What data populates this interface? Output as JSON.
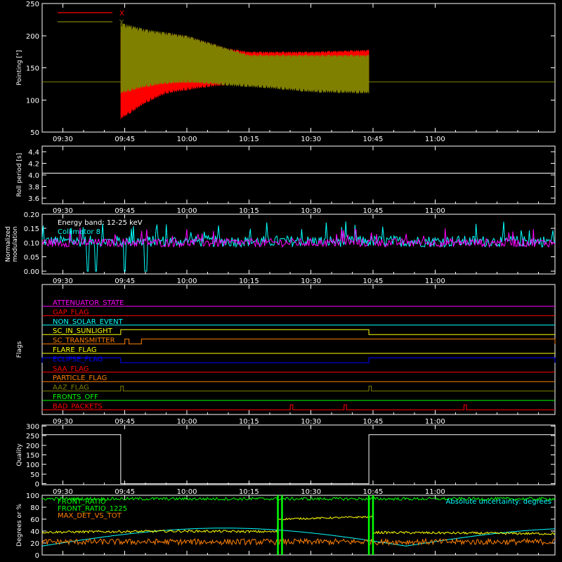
{
  "colors": {
    "background": "#000000",
    "axes": "#ffffff",
    "x_red": "#ff0000",
    "y_olive": "#808000",
    "white": "#ffffff",
    "cyan": "#00ffff",
    "magenta": "#ff00ff",
    "red": "#ff0000",
    "green": "#00ff00",
    "yellow": "#ffff00",
    "orange": "#ff8000",
    "blue": "#0000ff"
  },
  "time_ticks": [
    "09:30",
    "09:45",
    "10:00",
    "10:15",
    "10:30",
    "10:45",
    "11:00"
  ],
  "chart_data": [
    {
      "id": "pointing",
      "type": "area",
      "ylabel": "Pointing [\"]",
      "ylim": [
        50,
        250
      ],
      "yticks": [
        "50",
        "100",
        "150",
        "200",
        "250"
      ],
      "ytick_values": [
        50,
        100,
        150,
        200,
        250
      ],
      "legend": [
        {
          "name": "X",
          "color": "#ff0000"
        },
        {
          "name": "Y",
          "color": "#808000"
        }
      ],
      "x_range": [
        "09:25",
        "11:29"
      ],
      "data_start": "09:44",
      "data_end": "10:44",
      "reference_line": 128,
      "series": [
        {
          "name": "X",
          "color": "#ff0000",
          "x": [
            "09:44",
            "09:50",
            "09:55",
            "10:00",
            "10:05",
            "10:10",
            "10:15",
            "10:20",
            "10:30",
            "10:44"
          ],
          "upper": [
            205,
            205,
            205,
            200,
            190,
            180,
            175,
            175,
            175,
            178
          ],
          "lower": [
            70,
            95,
            110,
            115,
            120,
            123,
            125,
            125,
            125,
            126
          ]
        },
        {
          "name": "Y",
          "color": "#808000",
          "x": [
            "09:44",
            "09:50",
            "09:55",
            "10:00",
            "10:05",
            "10:10",
            "10:15",
            "10:20",
            "10:30",
            "10:44"
          ],
          "upper": [
            220,
            210,
            205,
            200,
            190,
            180,
            170,
            170,
            170,
            170
          ],
          "lower": [
            110,
            120,
            125,
            127,
            125,
            122,
            120,
            118,
            112,
            110
          ]
        }
      ]
    },
    {
      "id": "roll",
      "type": "line",
      "ylabel": "Roll period [s]",
      "ylim": [
        3.5,
        4.5
      ],
      "yticks": [
        "3.6",
        "3.8",
        "4.0",
        "4.2",
        "4.4"
      ],
      "ytick_values": [
        3.6,
        3.8,
        4.0,
        4.2,
        4.4
      ],
      "series": [
        {
          "name": "roll",
          "color": "#ffffff",
          "x": [
            "09:25",
            "11:29"
          ],
          "y": [
            4.03,
            4.03
          ]
        }
      ]
    },
    {
      "id": "modulation",
      "type": "line",
      "ylabel": "Normalized modulation",
      "ylim": [
        -0.01,
        0.2
      ],
      "yticks": [
        "0.00",
        "0.05",
        "0.10",
        "0.15",
        "0.20"
      ],
      "ytick_values": [
        0.0,
        0.05,
        0.1,
        0.15,
        0.2
      ],
      "annotation": "Energy band: 12-25 keV",
      "series": [
        {
          "name": "Collimator 8",
          "color": "#00ffff",
          "mean": 0.105,
          "spread": 0.02,
          "dropouts": [
            "09:36",
            "09:38",
            "09:45",
            "09:50"
          ]
        },
        {
          "name": "",
          "color": "#ff00ff",
          "mean": 0.1,
          "spread": 0.015
        }
      ]
    },
    {
      "id": "flags",
      "type": "line",
      "ylabel": "Flags",
      "flags": [
        {
          "name": "ATTENUATOR_STATE",
          "color": "#ff00ff"
        },
        {
          "name": "GAP_FLAG",
          "color": "#ff0000"
        },
        {
          "name": "NON_SOLAR_EVENT",
          "color": "#00ffff"
        },
        {
          "name": "SC_IN_SUNLIGHT",
          "color": "#ffff00",
          "high": [
            [
              "09:44",
              "10:44"
            ]
          ]
        },
        {
          "name": "SC_TRANSMITTER",
          "color": "#ff8000",
          "high": [
            [
              "09:45",
              "09:46"
            ],
            [
              "09:49",
              "11:29"
            ]
          ]
        },
        {
          "name": "FLARE_FLAG",
          "color": "#ffff00"
        },
        {
          "name": "ECLIPSE_FLAG",
          "color": "#0000ff",
          "high": [
            [
              "09:25",
              "09:44"
            ],
            [
              "10:44",
              "11:29"
            ]
          ]
        },
        {
          "name": "SAA_FLAG",
          "color": "#ff0000"
        },
        {
          "name": "PARTICLE_FLAG",
          "color": "#ff8000"
        },
        {
          "name": "AAZ_FLAG",
          "color": "#808000",
          "pulses": [
            "09:44",
            "10:44"
          ]
        },
        {
          "name": "FRONTS_OFF",
          "color": "#00ff00"
        },
        {
          "name": "BAD_PACKETS",
          "color": "#ff0000",
          "pulses": [
            "10:25",
            "10:38",
            "11:07"
          ]
        }
      ]
    },
    {
      "id": "quality",
      "type": "line",
      "ylabel": "Quality",
      "ylim": [
        -5,
        305
      ],
      "yticks": [
        "0",
        "50",
        "100",
        "150",
        "200",
        "250",
        "300"
      ],
      "ytick_values": [
        0,
        50,
        100,
        150,
        200,
        250,
        300
      ],
      "series": [
        {
          "name": "quality",
          "color": "#ffffff",
          "x": [
            "09:25",
            "09:44",
            "09:44",
            "10:44",
            "10:44",
            "11:29"
          ],
          "y": [
            255,
            255,
            0,
            0,
            255,
            255
          ]
        }
      ]
    },
    {
      "id": "ratios",
      "type": "line",
      "ylabel": "Degrees or %",
      "ylim": [
        0,
        100
      ],
      "yticks": [
        "0",
        "20",
        "40",
        "60",
        "80",
        "100"
      ],
      "ytick_values": [
        0,
        20,
        40,
        60,
        80,
        100
      ],
      "annotation": "Absolute uncertainty: degrees",
      "series": [
        {
          "name": "FRONT_RATIO",
          "color": "#00ff00"
        },
        {
          "name": "FRONT_RATIO_1225",
          "color": "#00ff00"
        },
        {
          "name": "MAX_DET_VS_TOT",
          "color": "#ff8000"
        },
        {
          "name": "",
          "color": "#ffff00"
        },
        {
          "name": "",
          "color": "#00ffff"
        }
      ]
    }
  ]
}
